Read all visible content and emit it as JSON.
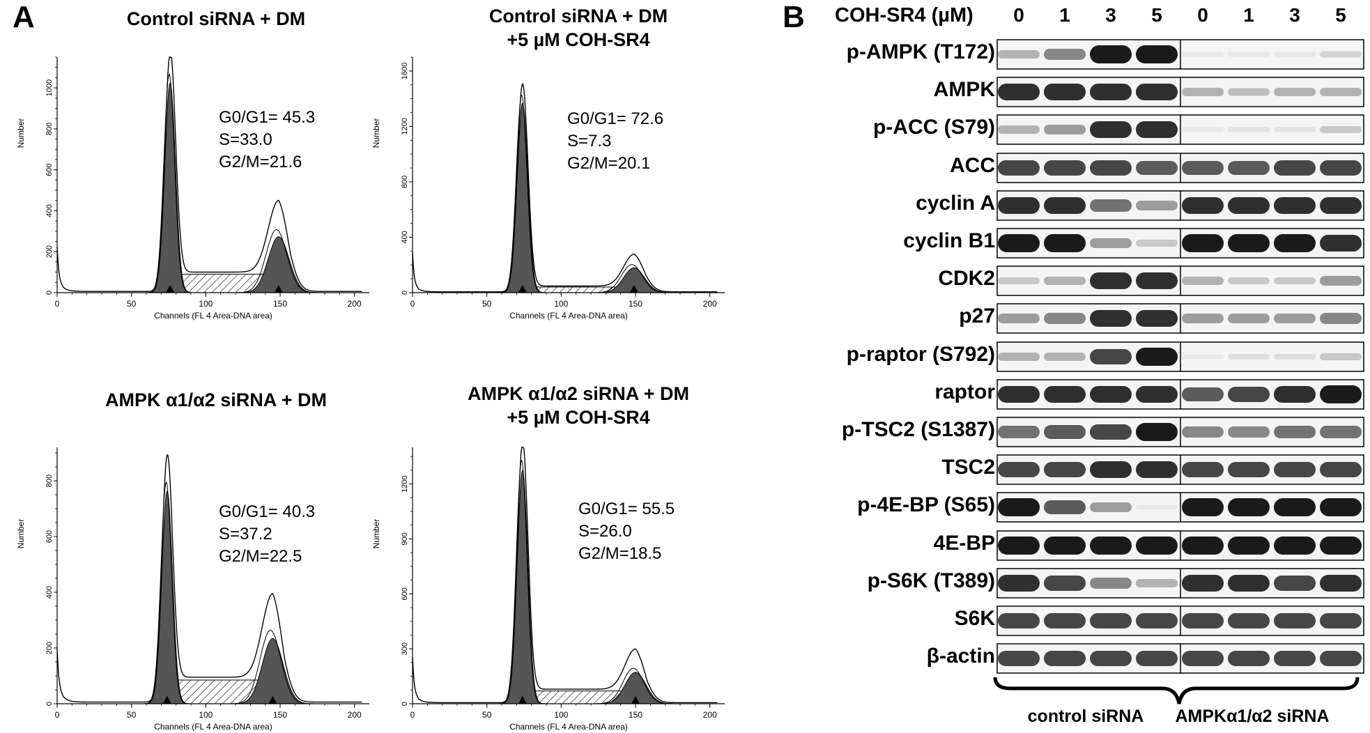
{
  "panelA": {
    "letter": "A",
    "xlabel": "Channels (FL 4 Area-DNA area)",
    "ylabel": "Number",
    "histograms": [
      {
        "title_lines": [
          "Control siRNA + DM"
        ],
        "stats": [
          "G0/G1= 45.3",
          "S=33.0",
          "G2/M=21.6"
        ],
        "yticks": [
          "0",
          "200",
          "400",
          "600",
          "800",
          "1000"
        ],
        "xticks": [
          "0",
          "50",
          "100",
          "150",
          "200"
        ],
        "ymax": 1150,
        "g1_pos": 76,
        "g1_height": 1100,
        "g2_pos": 149,
        "g2_height": 350,
        "s_level": 90
      },
      {
        "title_lines": [
          "Control siRNA + DM",
          "+5 µM COH-SR4"
        ],
        "stats": [
          "G0/G1= 72.6",
          "S=7.3",
          "G2/M=20.1"
        ],
        "yticks": [
          "0",
          "400",
          "800",
          "1200",
          "1600"
        ],
        "xticks": [
          "0",
          "50",
          "100",
          "150",
          "200"
        ],
        "ymax": 1700,
        "g1_pos": 74,
        "g1_height": 1470,
        "g2_pos": 149,
        "g2_height": 230,
        "s_level": 40
      },
      {
        "title_lines": [
          "AMPK α1/α2 siRNA + DM"
        ],
        "stats": [
          "G0/G1= 40.3",
          "S=37.2",
          "G2/M=22.5"
        ],
        "yticks": [
          "0",
          "200",
          "400",
          "600",
          "800"
        ],
        "xticks": [
          "0",
          "50",
          "100",
          "150",
          "200"
        ],
        "ymax": 920,
        "g1_pos": 74,
        "g1_height": 820,
        "g2_pos": 145,
        "g2_height": 300,
        "s_level": 85
      },
      {
        "title_lines": [
          "AMPK α1/α2 siRNA + DM",
          "+5 µM COH-SR4"
        ],
        "stats": [
          "G0/G1= 55.5",
          "S=26.0",
          "G2/M=18.5"
        ],
        "yticks": [
          "0",
          "300",
          "600",
          "900",
          "1200"
        ],
        "xticks": [
          "0",
          "50",
          "100",
          "150",
          "200"
        ],
        "ymax": 1400,
        "g1_pos": 74,
        "g1_height": 1370,
        "g2_pos": 150,
        "g2_height": 220,
        "s_level": 70
      }
    ]
  },
  "panelB": {
    "letter": "B",
    "conc_label": "COH-SR4 (µM)",
    "concentrations": [
      "0",
      "1",
      "3",
      "5",
      "0",
      "1",
      "3",
      "5"
    ],
    "groups": [
      "control siRNA",
      "AMPKα1/α2 siRNA"
    ],
    "band_color": "#1a1a1a",
    "proteins": [
      {
        "name": "p-AMPK (T172)",
        "intensities": [
          0.3,
          0.5,
          1.0,
          1.0,
          0.05,
          0.05,
          0.06,
          0.15
        ]
      },
      {
        "name": "AMPK",
        "intensities": [
          0.9,
          0.9,
          0.9,
          0.9,
          0.3,
          0.25,
          0.3,
          0.3
        ]
      },
      {
        "name": "p-ACC (S79)",
        "intensities": [
          0.3,
          0.4,
          0.9,
          0.9,
          0.05,
          0.08,
          0.08,
          0.2
        ]
      },
      {
        "name": "ACC",
        "intensities": [
          0.8,
          0.8,
          0.8,
          0.7,
          0.7,
          0.7,
          0.8,
          0.8
        ]
      },
      {
        "name": "cyclin A",
        "intensities": [
          0.9,
          0.9,
          0.6,
          0.4,
          0.9,
          0.9,
          0.9,
          0.9
        ]
      },
      {
        "name": "cyclin B1",
        "intensities": [
          1.0,
          1.0,
          0.4,
          0.2,
          1.0,
          1.0,
          1.0,
          0.9
        ]
      },
      {
        "name": "CDK2",
        "intensities": [
          0.2,
          0.3,
          0.9,
          0.9,
          0.3,
          0.2,
          0.2,
          0.4
        ]
      },
      {
        "name": "p27",
        "intensities": [
          0.4,
          0.5,
          0.9,
          0.9,
          0.4,
          0.4,
          0.4,
          0.5
        ]
      },
      {
        "name": "p-raptor (S792)",
        "intensities": [
          0.3,
          0.3,
          0.8,
          1.0,
          0.05,
          0.1,
          0.1,
          0.2
        ]
      },
      {
        "name": "raptor",
        "intensities": [
          0.9,
          0.9,
          0.9,
          0.9,
          0.7,
          0.8,
          0.9,
          1.0
        ]
      },
      {
        "name": "p-TSC2 (S1387)",
        "intensities": [
          0.6,
          0.7,
          0.8,
          1.0,
          0.5,
          0.5,
          0.6,
          0.6
        ]
      },
      {
        "name": "TSC2",
        "intensities": [
          0.8,
          0.8,
          0.9,
          0.9,
          0.8,
          0.8,
          0.8,
          0.8
        ]
      },
      {
        "name": "p-4E-BP (S65)",
        "intensities": [
          1.0,
          0.7,
          0.4,
          0.05,
          1.0,
          1.0,
          1.0,
          1.0
        ]
      },
      {
        "name": "4E-BP",
        "intensities": [
          1.0,
          1.0,
          1.0,
          1.0,
          1.0,
          1.0,
          1.0,
          1.0
        ]
      },
      {
        "name": "p-S6K (T389)",
        "intensities": [
          0.9,
          0.8,
          0.5,
          0.3,
          0.9,
          0.9,
          0.8,
          0.9
        ]
      },
      {
        "name": "S6K",
        "intensities": [
          0.8,
          0.8,
          0.8,
          0.8,
          0.8,
          0.8,
          0.8,
          0.8
        ]
      },
      {
        "name": "β-actin",
        "intensities": [
          0.8,
          0.8,
          0.8,
          0.8,
          0.8,
          0.8,
          0.8,
          0.8
        ]
      }
    ]
  }
}
